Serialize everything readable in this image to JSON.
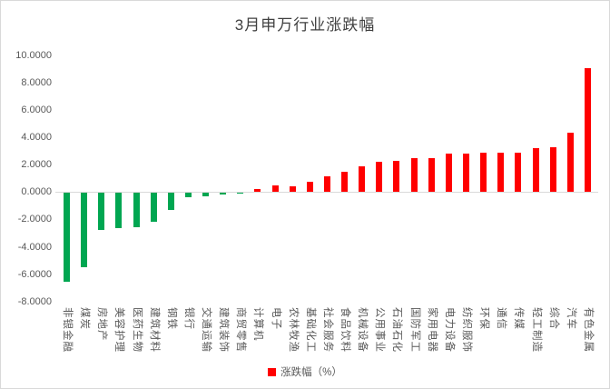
{
  "chart_data": {
    "type": "bar",
    "title": "3月申万行业涨跌幅",
    "legend": [
      "涨跌幅（%）"
    ],
    "legend_position": "bottom",
    "categories": [
      "非银金融",
      "煤炭",
      "房地产",
      "美容护理",
      "医药生物",
      "建筑材料",
      "钢铁",
      "银行",
      "交通运输",
      "建筑装饰",
      "商贸零售",
      "计算机",
      "电子",
      "农林牧渔",
      "基础化工",
      "社会服务",
      "食品饮料",
      "机械设备",
      "公用事业",
      "石油石化",
      "国防军工",
      "家用电器",
      "电力设备",
      "纺织服饰",
      "环保",
      "通信",
      "传媒",
      "轻工制造",
      "综合",
      "汽车",
      "有色金属"
    ],
    "values": [
      -6.52,
      -5.45,
      -2.67,
      -2.58,
      -2.47,
      -2.07,
      -1.25,
      -0.3,
      -0.25,
      -0.13,
      -0.02,
      0.2,
      0.47,
      0.45,
      0.73,
      1.18,
      1.47,
      1.91,
      2.25,
      2.31,
      2.46,
      2.5,
      2.8,
      2.85,
      2.86,
      2.87,
      2.92,
      3.25,
      3.3,
      4.35,
      9.05
    ],
    "ylim": [
      -8,
      10
    ],
    "ytick_labels": [
      "10.0000",
      "8.0000",
      "6.0000",
      "4.0000",
      "2.0000",
      "0.0000",
      "-2.0000",
      "-4.0000",
      "-6.0000",
      "-8.0000"
    ],
    "positive_color": "#FF0000",
    "negative_color": "#00A651",
    "axis_text_color": "#595959",
    "gridline_color": "#D9D9D9",
    "grid": "zero-line-only"
  }
}
